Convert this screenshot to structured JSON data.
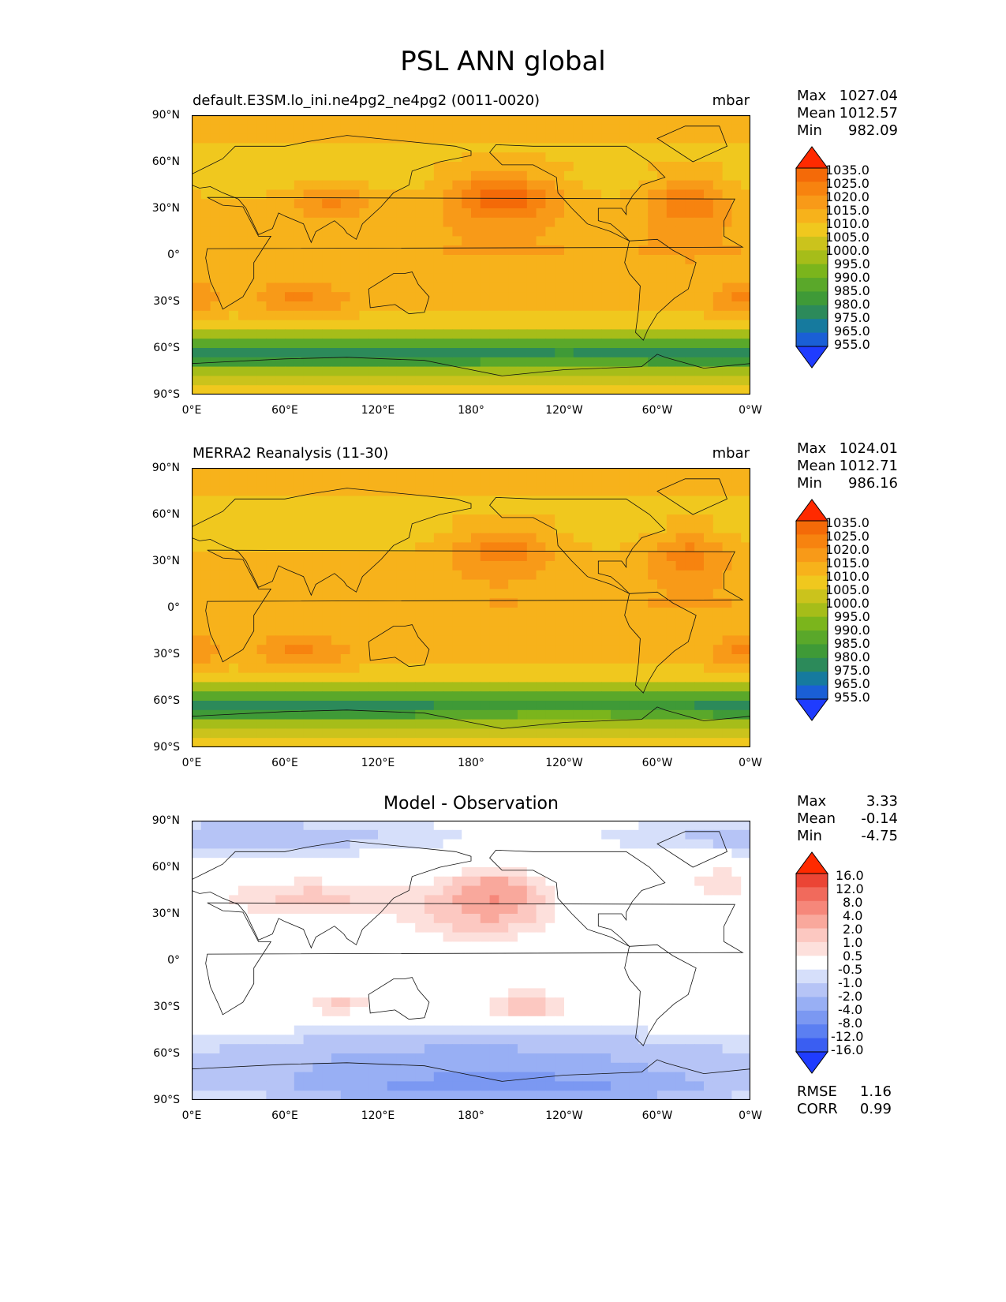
{
  "title": "PSL ANN global",
  "x_ticks": [
    "0°E",
    "60°E",
    "120°E",
    "180°",
    "120°W",
    "60°W",
    "0°W"
  ],
  "y_ticks": [
    "90°N",
    "60°N",
    "30°N",
    "0°",
    "30°S",
    "60°S",
    "90°S"
  ],
  "stat_labels": {
    "max": "Max",
    "mean": "Mean",
    "min": "Min",
    "rmse": "RMSE",
    "corr": "CORR"
  },
  "panels": [
    {
      "title": "default.E3SM.lo_ini.ne4pg2_ne4pg2 (0011-0020)",
      "units": "mbar",
      "stats": {
        "max": "1027.04",
        "mean": "1012.57",
        "min": "982.09"
      },
      "colorbar": {
        "labels": [
          "1035.0",
          "1025.0",
          "1020.0",
          "1015.0",
          "1010.0",
          "1005.0",
          "1000.0",
          "995.0",
          "990.0",
          "985.0",
          "980.0",
          "975.0",
          "965.0",
          "955.0"
        ]
      }
    },
    {
      "title": "MERRA2 Reanalysis (11-30)",
      "units": "mbar",
      "stats": {
        "max": "1024.01",
        "mean": "1012.71",
        "min": "986.16"
      },
      "colorbar": {
        "labels": [
          "1035.0",
          "1025.0",
          "1020.0",
          "1015.0",
          "1010.0",
          "1005.0",
          "1000.0",
          "995.0",
          "990.0",
          "985.0",
          "980.0",
          "975.0",
          "965.0",
          "955.0"
        ]
      }
    },
    {
      "title": "Model - Observation",
      "units": "",
      "stats": {
        "max": "3.33",
        "mean": "-0.14",
        "min": "-4.75",
        "rmse": "1.16",
        "corr": "0.99"
      },
      "colorbar": {
        "labels": [
          "16.0",
          "12.0",
          "8.0",
          "4.0",
          "2.0",
          "1.0",
          "0.5",
          "-0.5",
          "-1.0",
          "-2.0",
          "-4.0",
          "-8.0",
          "-12.0",
          "-16.0"
        ]
      }
    }
  ],
  "colors": {
    "psl_scale": [
      "#1f3cff",
      "#1a5fd6",
      "#167a9e",
      "#2c8a5a",
      "#3f9a37",
      "#5aa82a",
      "#7bb51c",
      "#a6bd19",
      "#cbc31c",
      "#f0c81e",
      "#f7b21b",
      "#f89a18",
      "#f7830f",
      "#f46a08",
      "#ff2a00"
    ],
    "diff_scale": [
      "#1f3cff",
      "#3a5ef2",
      "#5b7ff2",
      "#7b98f2",
      "#98aff4",
      "#b6c4f6",
      "#d6dffa",
      "#ffffff",
      "#fde0dc",
      "#fcc8c1",
      "#f9a89c",
      "#f6877a",
      "#f16a5c",
      "#eb4535",
      "#ff2a00"
    ]
  },
  "chart_data": [
    {
      "type": "heatmap",
      "subplot": "model",
      "title": "default.E3SM.lo_ini.ne4pg2_ne4pg2 (0011-0020)",
      "units": "mbar",
      "xlim": [
        0,
        360
      ],
      "ylim": [
        -90,
        90
      ],
      "levels": [
        955,
        965,
        975,
        980,
        985,
        990,
        995,
        1000,
        1005,
        1010,
        1015,
        1020,
        1025,
        1035
      ],
      "features": [
        {
          "name": "north-pacific-high",
          "lon": 200,
          "lat": 38,
          "lon_half": 36,
          "lat_half": 16,
          "value": 1028
        },
        {
          "name": "north-atlantic-high",
          "lon": 320,
          "lat": 35,
          "lon_half": 26,
          "lat_half": 16,
          "value": 1024
        },
        {
          "name": "tibet-high",
          "lon": 90,
          "lat": 35,
          "lon_half": 25,
          "lat_half": 10,
          "value": 1021
        },
        {
          "name": "south-indian-high",
          "lon": 70,
          "lat": -30,
          "lon_half": 30,
          "lat_half": 9,
          "value": 1021
        },
        {
          "name": "south-atlantic-high",
          "lon": 355,
          "lat": -30,
          "lon_half": 20,
          "lat_half": 9,
          "value": 1021
        },
        {
          "name": "antarctic-trough",
          "lon": 240,
          "lat": -66,
          "lon_half": 90,
          "lat_half": 6,
          "value": 982
        }
      ]
    },
    {
      "type": "heatmap",
      "subplot": "observation",
      "title": "MERRA2 Reanalysis (11-30)",
      "units": "mbar",
      "xlim": [
        0,
        360
      ],
      "ylim": [
        -90,
        90
      ],
      "levels": [
        955,
        965,
        975,
        980,
        985,
        990,
        995,
        1000,
        1005,
        1010,
        1015,
        1020,
        1025,
        1035
      ],
      "features": [
        {
          "name": "north-pacific-high",
          "lon": 200,
          "lat": 38,
          "lon_half": 34,
          "lat_half": 15,
          "value": 1022
        },
        {
          "name": "north-atlantic-high",
          "lon": 320,
          "lat": 35,
          "lon_half": 26,
          "lat_half": 15,
          "value": 1022
        },
        {
          "name": "south-indian-high",
          "lon": 70,
          "lat": -30,
          "lon_half": 30,
          "lat_half": 9,
          "value": 1021
        },
        {
          "name": "south-atlantic-high",
          "lon": 355,
          "lat": -30,
          "lon_half": 20,
          "lat_half": 9,
          "value": 1021
        },
        {
          "name": "antarctic-trough",
          "lon": 240,
          "lat": -66,
          "lon_half": 90,
          "lat_half": 6,
          "value": 988
        }
      ]
    },
    {
      "type": "heatmap",
      "subplot": "difference",
      "title": "Model - Observation",
      "units": "",
      "xlim": [
        0,
        360
      ],
      "ylim": [
        -90,
        90
      ],
      "levels": [
        -16,
        -12,
        -8,
        -4,
        -2,
        -1,
        -0.5,
        0.5,
        1,
        2,
        4,
        8,
        12,
        16
      ],
      "features": [
        {
          "name": "north-pacific-positive",
          "lon": 195,
          "lat": 42,
          "lon_half": 22,
          "lat_half": 13,
          "value": 3
        },
        {
          "name": "north-pacific-broad",
          "lon": 185,
          "lat": 32,
          "lon_half": 45,
          "lat_half": 18,
          "value": 1.5
        },
        {
          "name": "eurasia-positive",
          "lon": 75,
          "lat": 40,
          "lon_half": 55,
          "lat_half": 12,
          "value": 1.2
        },
        {
          "name": "south-pacific-positive",
          "lon": 215,
          "lat": -30,
          "lon_half": 25,
          "lat_half": 10,
          "value": 1.5
        },
        {
          "name": "south-indian-positive",
          "lon": 95,
          "lat": -28,
          "lon_half": 20,
          "lat_half": 7,
          "value": 1.2
        },
        {
          "name": "north-atlantic-positive",
          "lon": 340,
          "lat": 50,
          "lon_half": 20,
          "lat_half": 12,
          "value": 0.8
        },
        {
          "name": "arctic-negative",
          "lon": 40,
          "lat": 80,
          "lon_half": 130,
          "lat_half": 12,
          "value": -1.5
        },
        {
          "name": "southern-ocean-negative",
          "lon": 180,
          "lat": -65,
          "lon_half": 190,
          "lat_half": 18,
          "value": -2.5
        },
        {
          "name": "antarctic-negative",
          "lon": 200,
          "lat": -82,
          "lon_half": 120,
          "lat_half": 9,
          "value": -4.5
        }
      ]
    }
  ]
}
